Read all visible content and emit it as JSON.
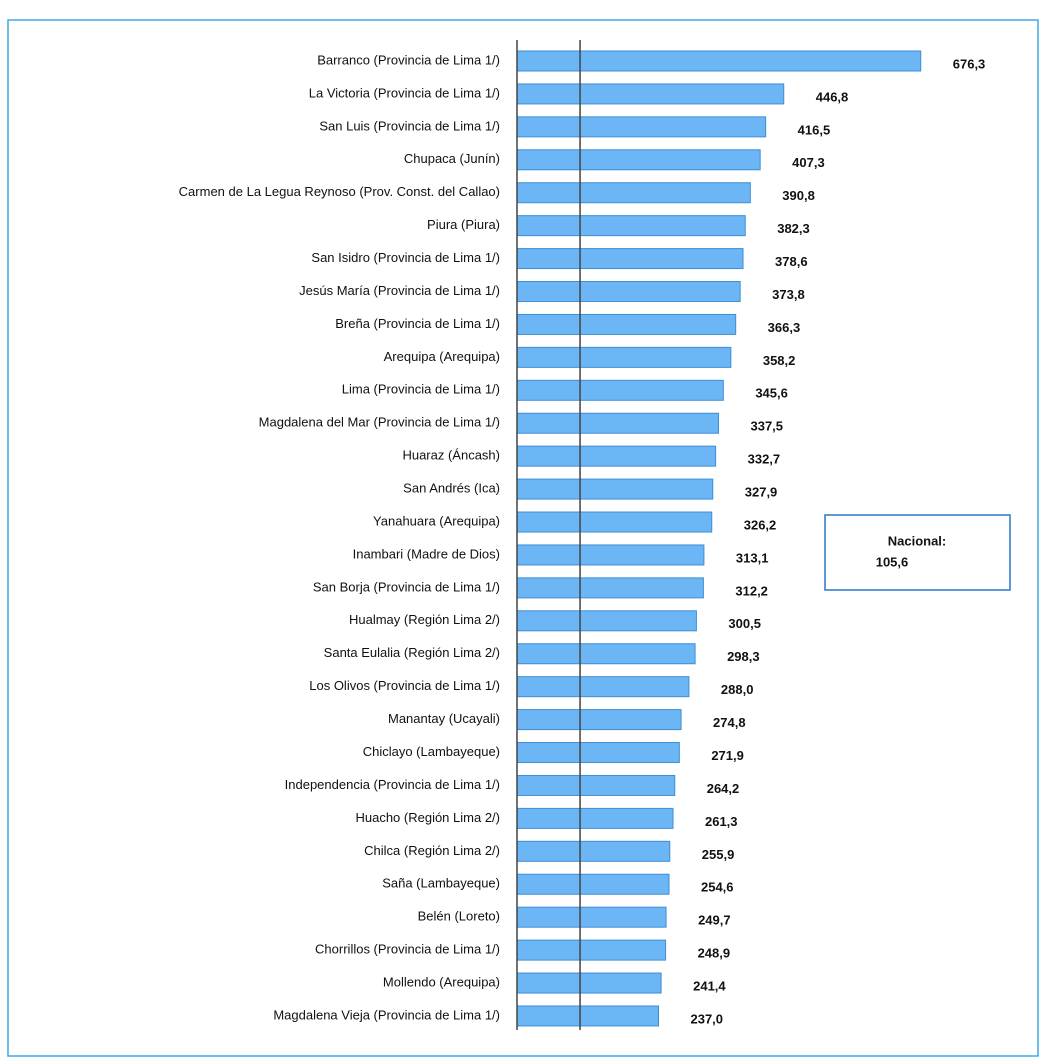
{
  "chart_data": {
    "type": "bar",
    "orientation": "horizontal",
    "categories": [
      "Barranco (Provincia de Lima 1/)",
      "La Victoria (Provincia de Lima 1/)",
      "San Luis (Provincia de Lima 1/)",
      "Chupaca (Junín)",
      "Carmen de La Legua Reynoso (Prov. Const. del Callao)",
      "Piura (Piura)",
      "San Isidro (Provincia de Lima 1/)",
      "Jesús María (Provincia de Lima 1/)",
      "Breña (Provincia de Lima 1/)",
      "Arequipa (Arequipa)",
      "Lima (Provincia de Lima 1/)",
      "Magdalena del Mar (Provincia de Lima 1/)",
      "Huaraz (Áncash)",
      "San Andrés (Ica)",
      "Yanahuara (Arequipa)",
      "Inambari (Madre de Dios)",
      "San Borja (Provincia de Lima 1/)",
      "Hualmay (Región Lima 2/)",
      "Santa Eulalia (Región Lima 2/)",
      "Los Olivos (Provincia de Lima 1/)",
      "Manantay (Ucayali)",
      "Chiclayo (Lambayeque)",
      "Independencia (Provincia de Lima 1/)",
      "Huacho (Región Lima 2/)",
      "Chilca (Región Lima 2/)",
      "Saña (Lambayeque)",
      "Belén (Loreto)",
      "Chorrillos (Provincia de Lima 1/)",
      "Mollendo (Arequipa)",
      "Magdalena Vieja (Provincia de Lima 1/)"
    ],
    "values": [
      676.3,
      446.8,
      416.5,
      407.3,
      390.8,
      382.3,
      378.6,
      373.8,
      366.3,
      358.2,
      345.6,
      337.5,
      332.7,
      327.9,
      326.2,
      313.1,
      312.2,
      300.5,
      298.3,
      288.0,
      274.8,
      271.9,
      264.2,
      261.3,
      255.9,
      254.6,
      249.7,
      248.9,
      241.4,
      237.0
    ],
    "value_labels": [
      "676,3",
      "446,8",
      "416,5",
      "407,3",
      "390,8",
      "382,3",
      "378,6",
      "373,8",
      "366,3",
      "358,2",
      "345,6",
      "337,5",
      "332,7",
      "327,9",
      "326,2",
      "313,1",
      "312,2",
      "300,5",
      "298,3",
      "288,0",
      "274,8",
      "271,9",
      "264,2",
      "261,3",
      "255,9",
      "254,6",
      "249,7",
      "248,9",
      "241,4",
      "237,0"
    ],
    "color": "#6cb6f5",
    "xlim": [
      0,
      720
    ],
    "reference": {
      "label": "Nacional:",
      "value": 105.6,
      "value_label": "105,6"
    }
  }
}
